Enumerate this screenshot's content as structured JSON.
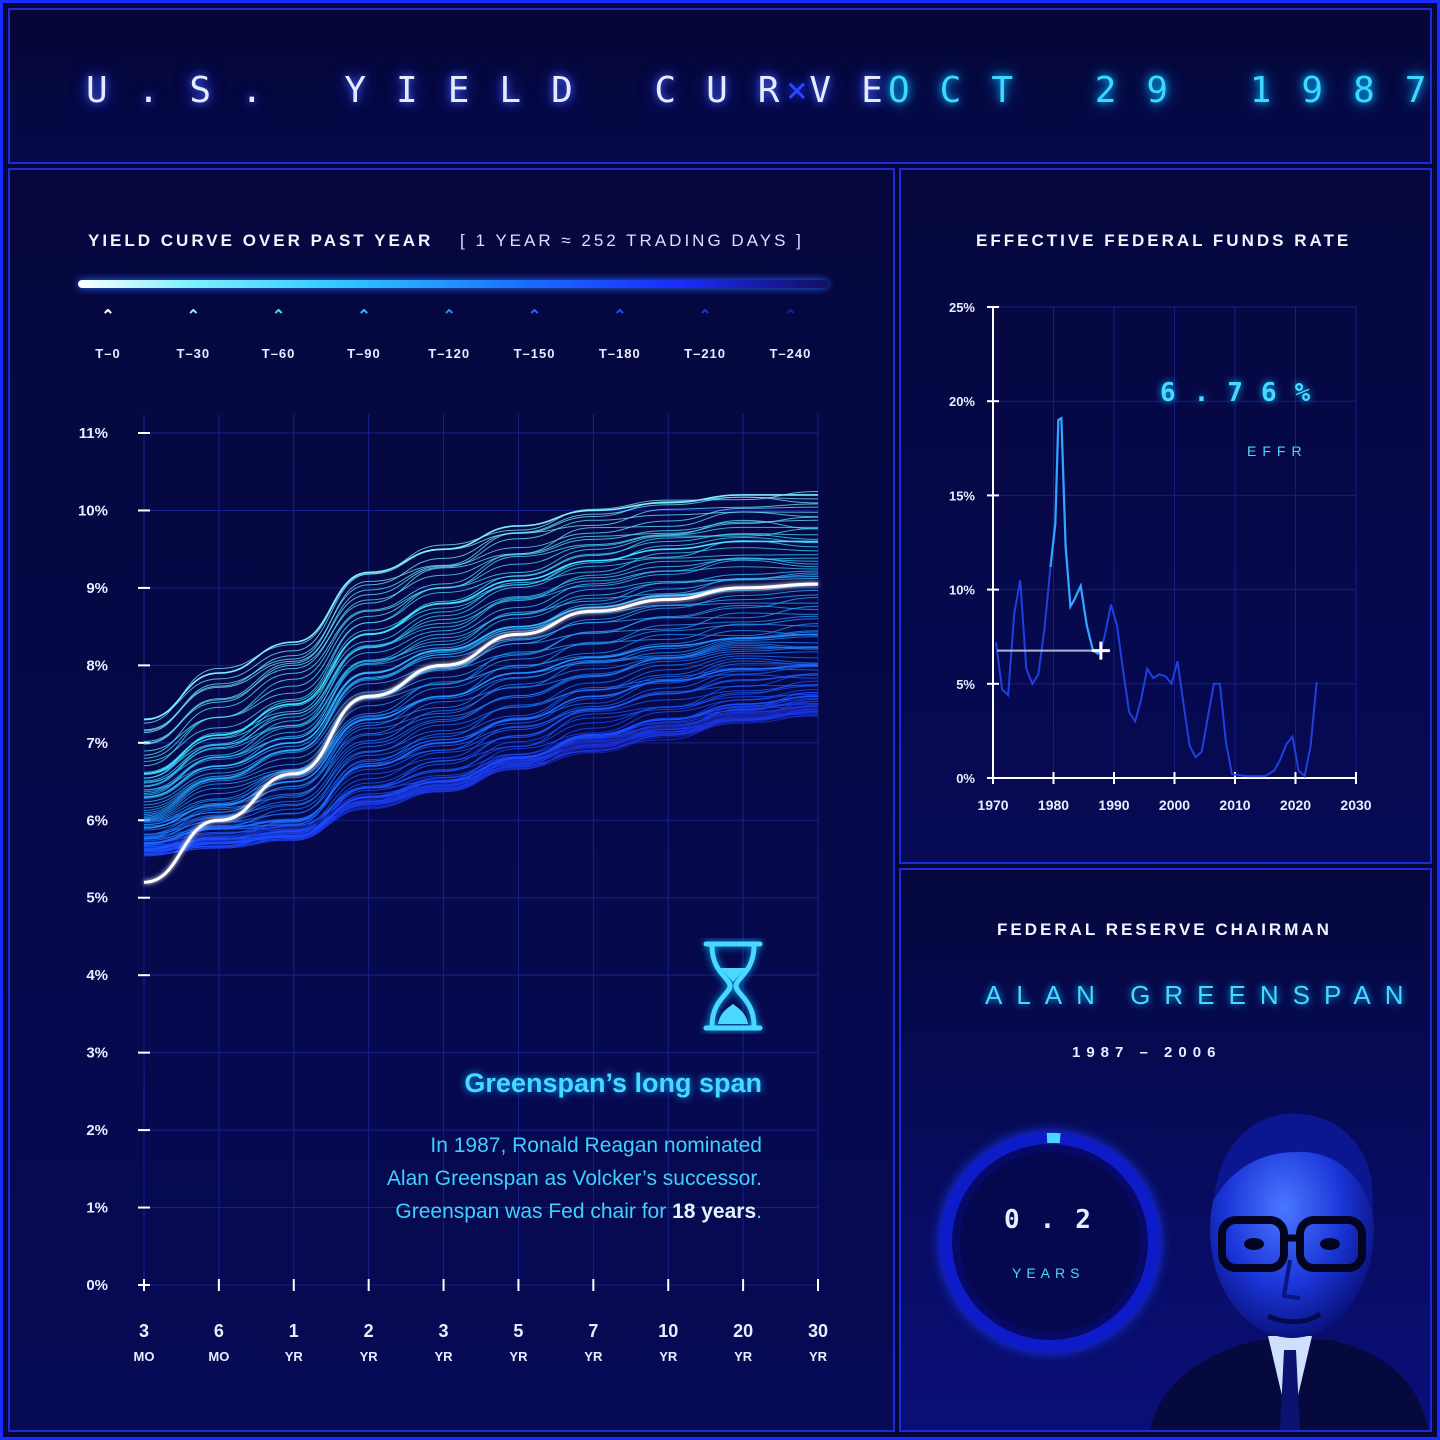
{
  "header": {
    "title": "U.S. YIELD CURVE",
    "separator": "×",
    "date": "OCT 29 1987"
  },
  "yield_panel": {
    "title": "YIELD CURVE OVER PAST YEAR",
    "subtitle": "[ 1 YEAR ≈ 252 TRADING DAYS ]",
    "legend": [
      "T–0",
      "T–30",
      "T–60",
      "T–90",
      "T–120",
      "T–150",
      "T–180",
      "T–210",
      "T–240"
    ],
    "legend_colors": [
      "#ffffff",
      "#7ff0ff",
      "#3fe0ff",
      "#2fb8ff",
      "#1e90ff",
      "#1a6cff",
      "#1a4cff",
      "#1a33e0",
      "#1a1f9a"
    ]
  },
  "effr_panel": {
    "title": "EFFECTIVE FEDERAL FUNDS RATE",
    "value": "6.76%",
    "label": "EFFR"
  },
  "chairman_panel": {
    "title": "FEDERAL RESERVE CHAIRMAN",
    "name": "ALAN GREENSPAN",
    "years": "1987 – 2006",
    "tenure_value": "0.2",
    "tenure_label": "YEARS",
    "tenure_fraction": 0.011
  },
  "note": {
    "title": "Greenspan’s long span",
    "line1": "In 1987, Ronald Reagan nominated",
    "line2": "Alan Greenspan as Volcker’s successor.",
    "line3_prefix": "Greenspan was Fed chair for ",
    "line3_bold": "18 years",
    "line3_suffix": "."
  },
  "colors": {
    "accent": "#49d8ff",
    "grid": "#1c2ad8",
    "axis": "#ffffff",
    "background": "#05073d"
  },
  "chart_data": [
    {
      "type": "line",
      "title": "YIELD CURVE OVER PAST YEAR",
      "categories": [
        {
          "num": "3",
          "unit": "MO"
        },
        {
          "num": "6",
          "unit": "MO"
        },
        {
          "num": "1",
          "unit": "YR"
        },
        {
          "num": "2",
          "unit": "YR"
        },
        {
          "num": "3",
          "unit": "YR"
        },
        {
          "num": "5",
          "unit": "YR"
        },
        {
          "num": "7",
          "unit": "YR"
        },
        {
          "num": "10",
          "unit": "YR"
        },
        {
          "num": "20",
          "unit": "YR"
        },
        {
          "num": "30",
          "unit": "YR"
        }
      ],
      "ylim": [
        0,
        11
      ],
      "yticks": [
        "0%",
        "1%",
        "2%",
        "3%",
        "4%",
        "5%",
        "6%",
        "7%",
        "8%",
        "9%",
        "10%",
        "11%"
      ],
      "series": [
        {
          "name": "T–0",
          "values": [
            5.2,
            6.0,
            6.6,
            7.6,
            8.0,
            8.4,
            8.7,
            8.85,
            9.0,
            9.05
          ]
        },
        {
          "name": "T–30",
          "values": [
            7.3,
            7.9,
            8.3,
            9.2,
            9.5,
            9.8,
            10.0,
            10.1,
            10.2,
            10.2
          ]
        },
        {
          "name": "T–60",
          "values": [
            6.6,
            7.1,
            7.5,
            8.4,
            8.8,
            9.1,
            9.35,
            9.5,
            9.6,
            9.6
          ]
        },
        {
          "name": "T–90",
          "values": [
            6.3,
            6.7,
            7.0,
            7.9,
            8.2,
            8.5,
            8.75,
            8.9,
            9.0,
            9.05
          ]
        },
        {
          "name": "T–120",
          "values": [
            5.9,
            6.2,
            6.5,
            7.3,
            7.6,
            7.9,
            8.1,
            8.25,
            8.35,
            8.4
          ]
        },
        {
          "name": "T–150",
          "values": [
            5.7,
            5.9,
            6.0,
            6.7,
            7.0,
            7.3,
            7.6,
            7.8,
            7.95,
            8.0
          ]
        },
        {
          "name": "T–180",
          "values": [
            5.6,
            5.7,
            5.8,
            6.3,
            6.5,
            6.8,
            7.1,
            7.3,
            7.5,
            7.6
          ]
        },
        {
          "name": "T–210",
          "values": [
            5.6,
            5.7,
            5.8,
            6.2,
            6.4,
            6.7,
            6.9,
            7.1,
            7.3,
            7.4
          ]
        },
        {
          "name": "T–240",
          "values": [
            5.7,
            5.8,
            5.9,
            6.3,
            6.5,
            6.8,
            7.0,
            7.2,
            7.35,
            7.45
          ]
        }
      ]
    },
    {
      "type": "line",
      "title": "EFFECTIVE FEDERAL FUNDS RATE",
      "xlim": [
        1970,
        2030
      ],
      "xticks": [
        "1970",
        "1980",
        "1990",
        "2000",
        "2010",
        "2020",
        "2030"
      ],
      "ylim": [
        0,
        25
      ],
      "yticks": [
        "0%",
        "5%",
        "10%",
        "15%",
        "20%",
        "25%"
      ],
      "x": [
        1970.5,
        1971.5,
        1972.5,
        1973.5,
        1974.5,
        1975.5,
        1976.5,
        1977.5,
        1978.5,
        1979.5,
        1980.3,
        1980.8,
        1981.3,
        1982.0,
        1982.8,
        1983.5,
        1984.5,
        1985.5,
        1986.5,
        1987.3,
        1987.83,
        1988.5,
        1989.5,
        1990.5,
        1991.5,
        1992.5,
        1993.5,
        1994.5,
        1995.5,
        1996.5,
        1997.5,
        1998.5,
        1999.5,
        2000.5,
        2001.5,
        2002.5,
        2003.5,
        2004.5,
        2005.5,
        2006.5,
        2007.5,
        2008.5,
        2009.5,
        2012.0,
        2015.0,
        2016.5,
        2017.5,
        2018.5,
        2019.5,
        2020.5,
        2021.5,
        2022.5,
        2023.5
      ],
      "values": [
        7.2,
        4.7,
        4.4,
        8.7,
        10.5,
        5.8,
        5.0,
        5.5,
        7.9,
        11.2,
        13.5,
        19.0,
        19.1,
        12.3,
        9.1,
        9.5,
        10.2,
        8.1,
        6.8,
        6.6,
        6.76,
        7.6,
        9.2,
        8.1,
        5.7,
        3.5,
        3.0,
        4.2,
        5.8,
        5.3,
        5.5,
        5.4,
        5.0,
        6.2,
        3.9,
        1.7,
        1.1,
        1.4,
        3.2,
        5.0,
        5.0,
        1.9,
        0.2,
        0.1,
        0.1,
        0.4,
        1.0,
        1.8,
        2.2,
        0.4,
        0.1,
        1.7,
        5.1
      ],
      "highlight": {
        "x": 1987.83,
        "y": 6.76
      }
    }
  ]
}
